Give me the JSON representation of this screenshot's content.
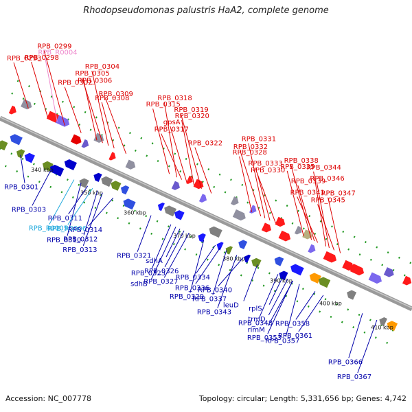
{
  "title": "Rhodopseudomonas palustris HaA2, complete genome",
  "footer": {
    "accession": "Accession: NC_007778",
    "summary": "Topology: circular; Length: 5,331,656 bp; Genes: 4,742"
  },
  "colors": {
    "backbone": "#8c8c8c",
    "top_label": "#dd0000",
    "bottom_label": "#0000aa",
    "rna_top": "#ee88cc",
    "rna_bottom": "#22aadd",
    "tick": "#229922"
  },
  "kbp_ticks": [
    {
      "text": "340 kbp",
      "pos": 0.1
    },
    {
      "text": "350 kbp",
      "pos": 0.22
    },
    {
      "text": "360 kbp",
      "pos": 0.325
    },
    {
      "text": "370 kbp",
      "pos": 0.445
    },
    {
      "text": "380 kbp",
      "pos": 0.565
    },
    {
      "text": "390 kbp",
      "pos": 0.68
    },
    {
      "text": "400 kbp",
      "pos": 0.8
    },
    {
      "text": "410 kbp",
      "pos": 0.925
    }
  ],
  "top_labels": [
    {
      "text": "RPB_0293",
      "t": 0.048
    },
    {
      "text": "RPB_0298",
      "t": 0.095
    },
    {
      "text": "RPB_R0004",
      "t": 0.118,
      "kind": "rna"
    },
    {
      "text": "RPB_0299",
      "t": 0.136
    },
    {
      "text": "RPB_0302",
      "t": 0.176
    },
    {
      "text": "RPB_0306",
      "t": 0.214
    },
    {
      "text": "RPB_0305",
      "t": 0.228
    },
    {
      "text": "RPB_0304",
      "t": 0.242
    },
    {
      "text": "RPB_0308",
      "t": 0.256
    },
    {
      "text": "RPB_0309",
      "t": 0.285
    },
    {
      "text": "RPB_0315",
      "t": 0.39
    },
    {
      "text": "RPB_0318",
      "t": 0.408
    },
    {
      "text": "RPB_0317",
      "t": 0.42
    },
    {
      "text": "gpsA",
      "t": 0.432
    },
    {
      "text": "RPB_0320",
      "t": 0.45
    },
    {
      "text": "RPB_0319",
      "t": 0.468
    },
    {
      "text": "RPB_0322",
      "t": 0.492
    },
    {
      "text": "RPB_0328",
      "t": 0.59
    },
    {
      "text": "RPB_0332",
      "t": 0.612
    },
    {
      "text": "RPB_0331",
      "t": 0.622
    },
    {
      "text": "RPB_0330",
      "t": 0.634
    },
    {
      "text": "RPB_0333",
      "t": 0.648
    },
    {
      "text": "RPB_0335",
      "t": 0.716
    },
    {
      "text": "RPB_0344",
      "t": 0.77
    },
    {
      "text": "RPB_0341",
      "t": 0.75
    },
    {
      "text": "RPB_0339",
      "t": 0.742
    },
    {
      "text": "RPB_0346",
      "t": 0.778
    },
    {
      "text": "RPB_0338",
      "t": 0.735
    },
    {
      "text": "RPB_0345",
      "t": 0.79
    },
    {
      "text": "RPB_0347",
      "t": 0.805
    }
  ],
  "bottom_labels": [
    {
      "text": "RPB_0301",
      "t": 0.075
    },
    {
      "text": "RPB_0303",
      "t": 0.15
    },
    {
      "text": "RPB_R0005",
      "t": 0.205,
      "kind": "rna"
    },
    {
      "text": "RPB_0310",
      "t": 0.222
    },
    {
      "text": "RPB_0311",
      "t": 0.238
    },
    {
      "text": "RPB_R0006",
      "t": 0.25,
      "kind": "rna"
    },
    {
      "text": "RPB_0312",
      "t": 0.262
    },
    {
      "text": "RPB_0313",
      "t": 0.274
    },
    {
      "text": "RPB_0314",
      "t": 0.3
    },
    {
      "text": "RPB_0321",
      "t": 0.392
    },
    {
      "text": "RPB_0323",
      "t": 0.44
    },
    {
      "text": "sdhB",
      "t": 0.452
    },
    {
      "text": "sdhA",
      "t": 0.462
    },
    {
      "text": "RPB_0326",
      "t": 0.472
    },
    {
      "text": "RPB_0327",
      "t": 0.484
    },
    {
      "text": "RPB_0329",
      "t": 0.52
    },
    {
      "text": "RPB_0334",
      "t": 0.548
    },
    {
      "text": "RPB_0336",
      "t": 0.56
    },
    {
      "text": "RPB_0337",
      "t": 0.575
    },
    {
      "text": "RPB_0343",
      "t": 0.6
    },
    {
      "text": "RPB_0340",
      "t": 0.615
    },
    {
      "text": "leuD",
      "t": 0.65
    },
    {
      "text": "RPB_0348",
      "t": 0.7
    },
    {
      "text": "RPB_0353",
      "t": 0.735
    },
    {
      "text": "rplS",
      "t": 0.712
    },
    {
      "text": "trmD",
      "t": 0.724
    },
    {
      "text": "rimM",
      "t": 0.736
    },
    {
      "text": "RPB_0357",
      "t": 0.752
    },
    {
      "text": "RPB_0358",
      "t": 0.79
    },
    {
      "text": "RPB_0361",
      "t": 0.81
    },
    {
      "text": "RPB_0366",
      "t": 0.905
    },
    {
      "text": "RPB_0367",
      "t": 0.94
    }
  ]
}
